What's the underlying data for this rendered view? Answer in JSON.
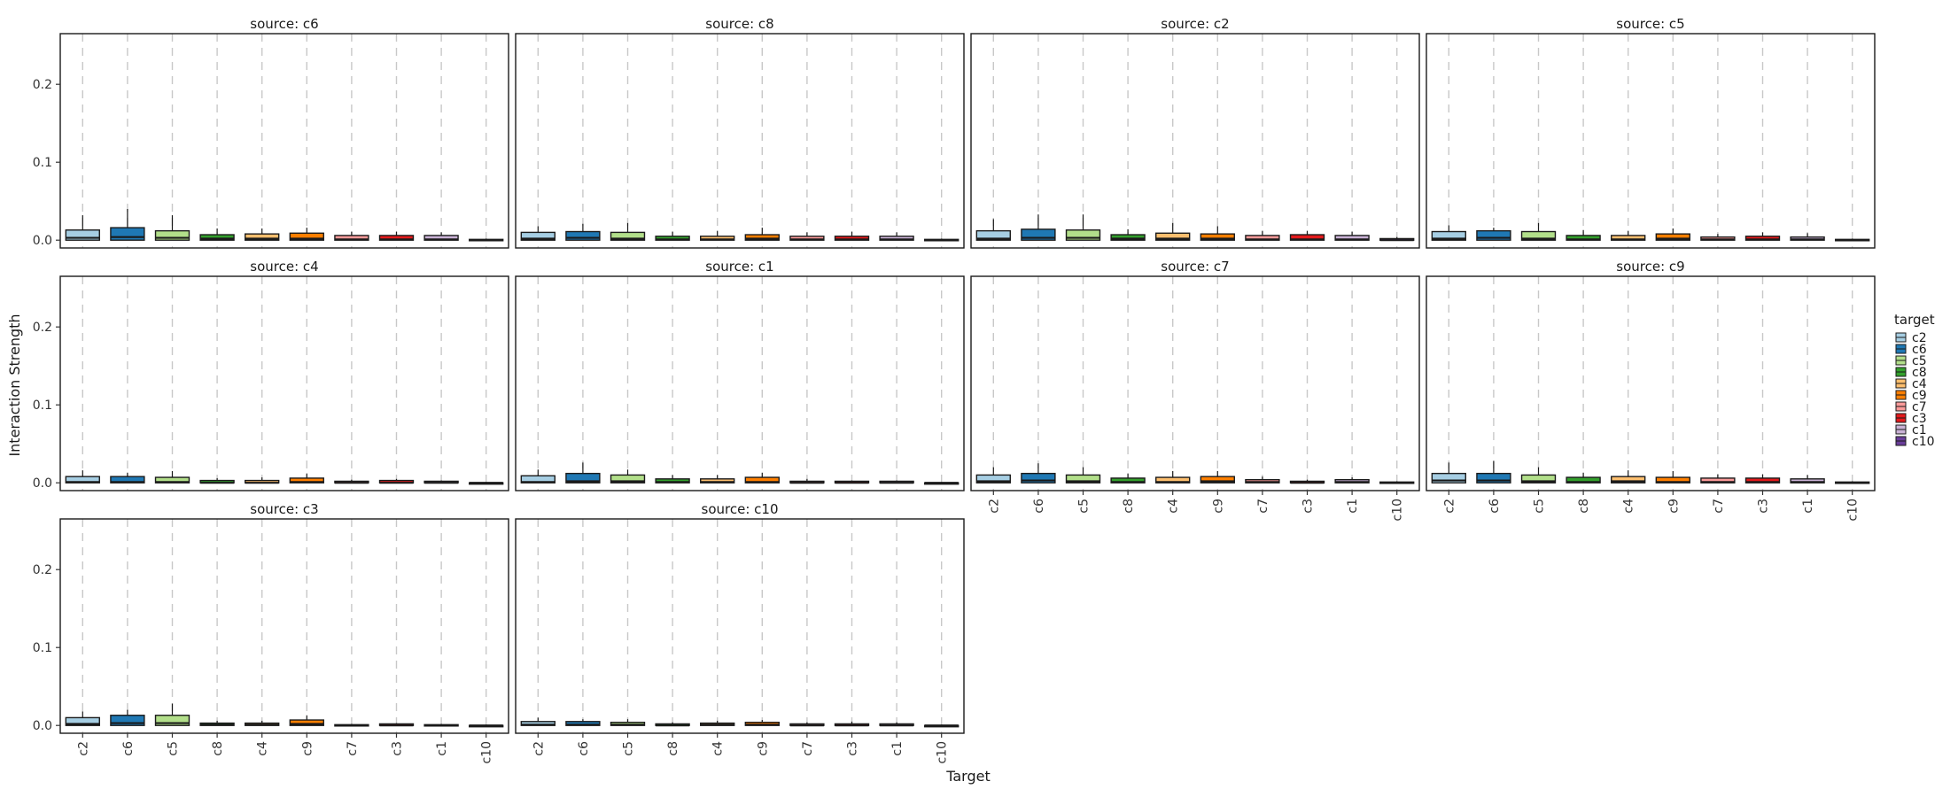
{
  "chart_data": {
    "type": "boxplot",
    "facet_variable": "source",
    "ylabel": "Interaction Strength",
    "xlabel": "Target",
    "ylim": [
      -0.01,
      0.265
    ],
    "yticks": [
      0.0,
      0.1,
      0.2
    ],
    "ytick_labels": [
      "0.0",
      "0.1",
      "0.2"
    ],
    "grid": "vertical dashed lines at each category",
    "categories": [
      "c2",
      "c6",
      "c5",
      "c8",
      "c4",
      "c9",
      "c7",
      "c3",
      "c1",
      "c10"
    ],
    "legend": {
      "title": "target",
      "position": "right",
      "items": [
        {
          "label": "c2",
          "color": "#a6cee3"
        },
        {
          "label": "c6",
          "color": "#1f78b4"
        },
        {
          "label": "c5",
          "color": "#b2df8a"
        },
        {
          "label": "c8",
          "color": "#33a02c"
        },
        {
          "label": "c4",
          "color": "#fdbf6f"
        },
        {
          "label": "c9",
          "color": "#ff7f00"
        },
        {
          "label": "c7",
          "color": "#fb9a99"
        },
        {
          "label": "c3",
          "color": "#e31a1c"
        },
        {
          "label": "c1",
          "color": "#cab2d6"
        },
        {
          "label": "c10",
          "color": "#6a3d9a"
        }
      ]
    },
    "panels": [
      {
        "title": "source: c6",
        "boxes": [
          [
            0.0,
            0.0,
            0.003,
            0.013,
            0.032
          ],
          [
            0.0,
            0.0,
            0.004,
            0.016,
            0.04
          ],
          [
            0.0,
            0.0,
            0.003,
            0.012,
            0.032
          ],
          [
            0.0,
            0.0,
            0.002,
            0.007,
            0.015
          ],
          [
            0.0,
            0.0,
            0.002,
            0.008,
            0.015
          ],
          [
            0.0,
            0.0,
            0.002,
            0.009,
            0.016
          ],
          [
            0.0,
            0.0,
            0.001,
            0.006,
            0.011
          ],
          [
            0.0,
            0.0,
            0.001,
            0.006,
            0.011
          ],
          [
            0.0,
            0.0,
            0.001,
            0.006,
            0.01
          ],
          [
            0.0,
            0.0,
            0.0,
            0.001,
            0.002
          ]
        ]
      },
      {
        "title": "source: c8",
        "boxes": [
          [
            0.0,
            0.0,
            0.002,
            0.01,
            0.018
          ],
          [
            0.0,
            0.0,
            0.003,
            0.011,
            0.021
          ],
          [
            0.0,
            0.0,
            0.002,
            0.01,
            0.022
          ],
          [
            0.0,
            0.0,
            0.001,
            0.005,
            0.011
          ],
          [
            0.0,
            0.0,
            0.001,
            0.005,
            0.012
          ],
          [
            0.0,
            0.0,
            0.002,
            0.007,
            0.016
          ],
          [
            0.0,
            0.0,
            0.001,
            0.005,
            0.01
          ],
          [
            0.0,
            0.0,
            0.001,
            0.005,
            0.011
          ],
          [
            0.0,
            0.0,
            0.001,
            0.005,
            0.01
          ],
          [
            0.0,
            0.0,
            0.0,
            0.001,
            0.002
          ]
        ]
      },
      {
        "title": "source: c2",
        "boxes": [
          [
            0.0,
            0.0,
            0.002,
            0.012,
            0.027
          ],
          [
            0.0,
            0.0,
            0.003,
            0.014,
            0.033
          ],
          [
            0.0,
            0.0,
            0.003,
            0.013,
            0.033
          ],
          [
            0.0,
            0.0,
            0.002,
            0.007,
            0.014
          ],
          [
            0.0,
            0.0,
            0.002,
            0.009,
            0.022
          ],
          [
            0.0,
            0.0,
            0.002,
            0.008,
            0.018
          ],
          [
            0.0,
            0.0,
            0.001,
            0.006,
            0.012
          ],
          [
            0.0,
            0.0,
            0.001,
            0.007,
            0.012
          ],
          [
            0.0,
            0.0,
            0.001,
            0.006,
            0.011
          ],
          [
            0.0,
            0.0,
            0.0,
            0.002,
            0.004
          ]
        ]
      },
      {
        "title": "source: c5",
        "boxes": [
          [
            0.0,
            0.0,
            0.002,
            0.011,
            0.019
          ],
          [
            0.0,
            0.0,
            0.003,
            0.012,
            0.016
          ],
          [
            0.0,
            0.0,
            0.002,
            0.011,
            0.022
          ],
          [
            0.0,
            0.0,
            0.001,
            0.006,
            0.013
          ],
          [
            0.0,
            0.0,
            0.001,
            0.006,
            0.012
          ],
          [
            0.0,
            0.0,
            0.002,
            0.008,
            0.015
          ],
          [
            0.0,
            0.0,
            0.001,
            0.004,
            0.008
          ],
          [
            0.0,
            0.0,
            0.001,
            0.005,
            0.01
          ],
          [
            0.0,
            0.0,
            0.001,
            0.004,
            0.009
          ],
          [
            0.0,
            0.0,
            0.0,
            0.001,
            0.002
          ]
        ]
      },
      {
        "title": "source: c4",
        "boxes": [
          [
            0.0,
            0.0,
            0.001,
            0.008,
            0.016
          ],
          [
            0.0,
            0.0,
            0.001,
            0.008,
            0.013
          ],
          [
            0.0,
            0.0,
            0.001,
            0.007,
            0.015
          ],
          [
            0.0,
            0.0,
            0.0,
            0.003,
            0.006
          ],
          [
            0.0,
            0.0,
            0.0,
            0.003,
            0.007
          ],
          [
            0.0,
            0.0,
            0.001,
            0.006,
            0.012
          ],
          [
            0.0,
            0.0,
            0.0,
            0.002,
            0.004
          ],
          [
            0.0,
            0.0,
            0.0,
            0.003,
            0.005
          ],
          [
            0.0,
            0.0,
            0.0,
            0.002,
            0.003
          ],
          [
            0.0,
            0.0,
            0.0,
            0.0,
            0.001
          ]
        ]
      },
      {
        "title": "source: c1",
        "boxes": [
          [
            0.0,
            0.0,
            0.001,
            0.009,
            0.017
          ],
          [
            0.0,
            0.0,
            0.002,
            0.012,
            0.026
          ],
          [
            0.0,
            0.0,
            0.002,
            0.01,
            0.017
          ],
          [
            0.0,
            0.0,
            0.001,
            0.005,
            0.01
          ],
          [
            0.0,
            0.0,
            0.001,
            0.005,
            0.01
          ],
          [
            0.0,
            0.0,
            0.001,
            0.007,
            0.013
          ],
          [
            0.0,
            0.0,
            0.0,
            0.002,
            0.005
          ],
          [
            0.0,
            0.0,
            0.0,
            0.002,
            0.003
          ],
          [
            0.0,
            0.0,
            0.0,
            0.002,
            0.003
          ],
          [
            0.0,
            0.0,
            0.0,
            0.0,
            0.001
          ]
        ]
      },
      {
        "title": "source: c7",
        "boxes": [
          [
            0.0,
            0.0,
            0.002,
            0.01,
            0.02
          ],
          [
            0.0,
            0.0,
            0.003,
            0.012,
            0.025
          ],
          [
            0.0,
            0.0,
            0.002,
            0.01,
            0.02
          ],
          [
            0.0,
            0.0,
            0.001,
            0.006,
            0.012
          ],
          [
            0.0,
            0.0,
            0.001,
            0.007,
            0.015
          ],
          [
            0.0,
            0.0,
            0.002,
            0.008,
            0.015
          ],
          [
            0.0,
            0.0,
            0.001,
            0.004,
            0.008
          ],
          [
            0.0,
            0.0,
            0.0,
            0.002,
            0.004
          ],
          [
            0.0,
            0.0,
            0.001,
            0.004,
            0.007
          ],
          [
            0.0,
            0.0,
            0.0,
            0.001,
            0.002
          ]
        ]
      },
      {
        "title": "source: c9",
        "boxes": [
          [
            0.0,
            0.0,
            0.003,
            0.012,
            0.026
          ],
          [
            0.0,
            0.0,
            0.003,
            0.012,
            0.028
          ],
          [
            0.0,
            0.0,
            0.002,
            0.01,
            0.02
          ],
          [
            0.0,
            0.0,
            0.001,
            0.007,
            0.013
          ],
          [
            0.0,
            0.0,
            0.002,
            0.008,
            0.016
          ],
          [
            0.0,
            0.0,
            0.001,
            0.007,
            0.015
          ],
          [
            0.0,
            0.0,
            0.001,
            0.006,
            0.011
          ],
          [
            0.0,
            0.0,
            0.001,
            0.006,
            0.011
          ],
          [
            0.0,
            0.0,
            0.001,
            0.005,
            0.01
          ],
          [
            0.0,
            0.0,
            0.0,
            0.001,
            0.002
          ]
        ]
      },
      {
        "title": "source: c3",
        "boxes": [
          [
            0.0,
            0.0,
            0.002,
            0.01,
            0.018
          ],
          [
            0.0,
            0.0,
            0.003,
            0.013,
            0.02
          ],
          [
            0.0,
            0.0,
            0.003,
            0.013,
            0.028
          ],
          [
            0.0,
            0.0,
            0.001,
            0.003,
            0.006
          ],
          [
            0.0,
            0.0,
            0.001,
            0.003,
            0.006
          ],
          [
            0.0,
            0.0,
            0.002,
            0.007,
            0.013
          ],
          [
            0.0,
            0.0,
            0.0,
            0.001,
            0.002
          ],
          [
            0.0,
            0.0,
            0.0,
            0.002,
            0.003
          ],
          [
            0.0,
            0.0,
            0.0,
            0.001,
            0.002
          ],
          [
            0.0,
            0.0,
            0.0,
            0.0,
            0.001
          ]
        ]
      },
      {
        "title": "source: c10",
        "boxes": [
          [
            0.0,
            0.0,
            0.001,
            0.005,
            0.01
          ],
          [
            0.0,
            0.0,
            0.001,
            0.005,
            0.008
          ],
          [
            0.0,
            0.0,
            0.001,
            0.004,
            0.008
          ],
          [
            0.0,
            0.0,
            0.0,
            0.002,
            0.004
          ],
          [
            0.0,
            0.0,
            0.001,
            0.003,
            0.006
          ],
          [
            0.0,
            0.0,
            0.001,
            0.004,
            0.007
          ],
          [
            0.0,
            0.0,
            0.0,
            0.002,
            0.004
          ],
          [
            0.0,
            0.0,
            0.0,
            0.002,
            0.005
          ],
          [
            0.0,
            0.0,
            0.0,
            0.002,
            0.004
          ],
          [
            0.0,
            0.0,
            0.0,
            0.0,
            0.001
          ]
        ]
      }
    ]
  }
}
